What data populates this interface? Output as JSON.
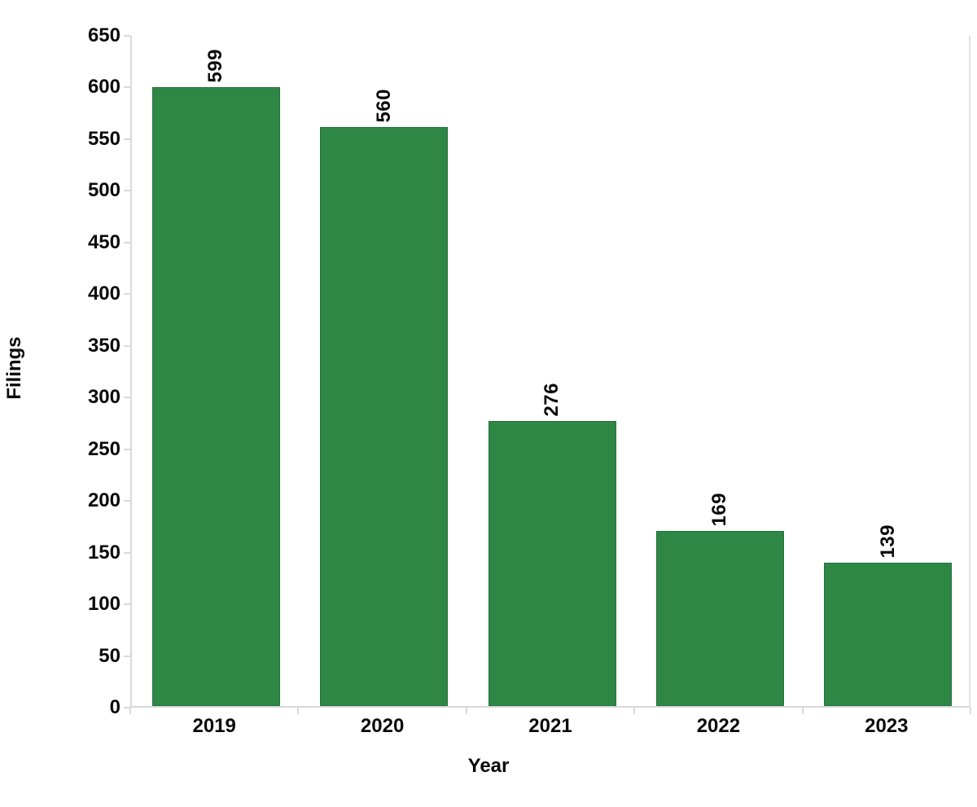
{
  "chart_data": {
    "type": "bar",
    "categories": [
      "2019",
      "2020",
      "2021",
      "2022",
      "2023"
    ],
    "values": [
      599,
      560,
      276,
      169,
      139
    ],
    "title": "",
    "xlabel": "Year",
    "ylabel": "Filings",
    "ylim": [
      0,
      650
    ],
    "ytick_step": 50,
    "ytick_labels": [
      "0",
      "50",
      "100",
      "150",
      "200",
      "250",
      "300",
      "350",
      "400",
      "450",
      "500",
      "550",
      "600",
      "650"
    ],
    "grid": false,
    "legend_position": "none",
    "value_labels_rotated_degrees": -90,
    "colors": {
      "bar_fill": "#2e8745",
      "bar_border": "#26703a",
      "axis_line": "#d9d9d9",
      "text": "#0a0a0a",
      "background": "#ffffff"
    }
  }
}
